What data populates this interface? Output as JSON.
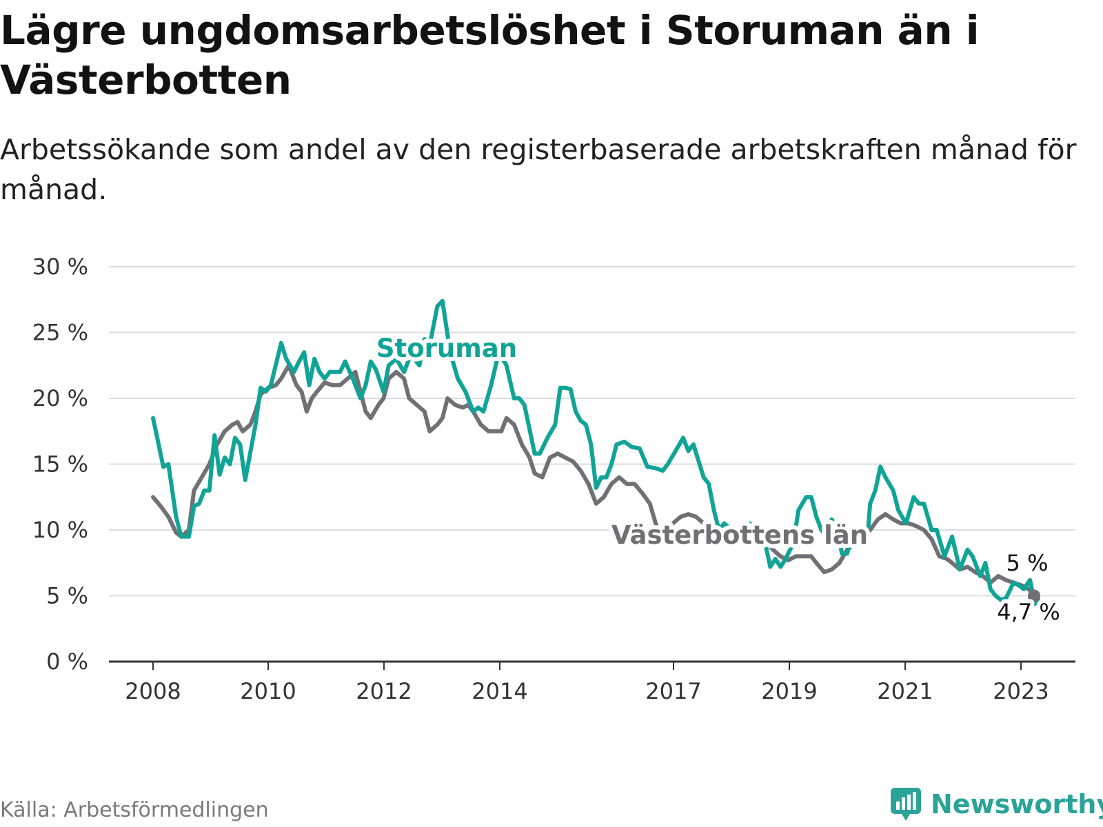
{
  "title": "Lägre ungdomsarbetslöshet i Storuman än i Västerbotten",
  "subtitle": "Arbetssökande som andel av den registerbaserade arbetskraften månad för månad.",
  "source": "Källa: Arbetsförmedlingen",
  "brand": {
    "name": "Newsworthy",
    "icon": "newsworthy-logo-icon"
  },
  "colors": {
    "storuman": "#10a497",
    "vasterbotten": "#707075",
    "grid": "#dcdcdc",
    "axis": "#333333"
  },
  "chart_data": {
    "type": "line",
    "xlim": [
      2008,
      2024.5
    ],
    "ylim": [
      0,
      30
    ],
    "y_ticks": [
      0,
      5,
      10,
      15,
      20,
      25,
      30
    ],
    "y_tick_labels": [
      "0 %",
      "5 %",
      "10 %",
      "15 %",
      "20 %",
      "25 %",
      "30 %"
    ],
    "x_ticks": [
      2008,
      2010,
      2012,
      2014,
      2017,
      2019,
      2021,
      2023
    ],
    "x_tick_labels": [
      "2008",
      "2010",
      "2012",
      "2014",
      "2017",
      "2019",
      "2021",
      "2023"
    ],
    "grid": true,
    "legend": "inline labels",
    "series": [
      {
        "name": "Storuman",
        "end_label": "4,7 %",
        "points": [
          [
            2008.0,
            18.5
          ],
          [
            2008.2,
            14.8
          ],
          [
            2008.3,
            15.0
          ],
          [
            2008.45,
            11.0
          ],
          [
            2008.55,
            9.5
          ],
          [
            2008.7,
            9.5
          ],
          [
            2008.8,
            11.8
          ],
          [
            2008.9,
            12.0
          ],
          [
            2009.0,
            13.0
          ],
          [
            2009.1,
            13.0
          ],
          [
            2009.2,
            17.2
          ],
          [
            2009.3,
            14.2
          ],
          [
            2009.4,
            15.5
          ],
          [
            2009.5,
            15.0
          ],
          [
            2009.6,
            17.0
          ],
          [
            2009.7,
            16.5
          ],
          [
            2009.8,
            13.8
          ],
          [
            2010.0,
            18.0
          ],
          [
            2010.1,
            20.8
          ],
          [
            2010.2,
            20.5
          ],
          [
            2010.3,
            21.0
          ],
          [
            2010.5,
            24.2
          ],
          [
            2010.6,
            23.0
          ],
          [
            2010.75,
            22.0
          ],
          [
            2010.85,
            22.8
          ],
          [
            2010.95,
            23.5
          ],
          [
            2011.05,
            21.0
          ],
          [
            2011.15,
            23.0
          ],
          [
            2011.25,
            22.0
          ],
          [
            2011.35,
            21.5
          ],
          [
            2011.45,
            22.0
          ],
          [
            2011.55,
            22.0
          ],
          [
            2011.65,
            22.0
          ],
          [
            2011.75,
            22.8
          ],
          [
            2011.9,
            21.5
          ],
          [
            2012.05,
            20.0
          ],
          [
            2012.15,
            21.0
          ],
          [
            2012.25,
            22.8
          ],
          [
            2012.35,
            22.2
          ],
          [
            2012.5,
            20.5
          ],
          [
            2012.6,
            22.5
          ],
          [
            2012.75,
            23.0
          ],
          [
            2012.9,
            22.0
          ],
          [
            2013.0,
            23.0
          ],
          [
            2013.1,
            23.0
          ],
          [
            2013.2,
            22.5
          ],
          [
            2013.3,
            24.5
          ],
          [
            2013.4,
            24.0
          ],
          [
            2013.55,
            27.0
          ],
          [
            2013.65,
            27.4
          ],
          [
            2013.8,
            23.5
          ],
          [
            2013.95,
            21.5
          ],
          [
            2014.1,
            20.5
          ],
          [
            2014.25,
            19.0
          ],
          [
            2014.35,
            19.3
          ],
          [
            2014.45,
            19.0
          ],
          [
            2014.6,
            21.0
          ],
          [
            2014.75,
            23.5
          ],
          [
            2014.9,
            22.5
          ],
          [
            2015.05,
            20.0
          ],
          [
            2015.15,
            20.0
          ],
          [
            2015.25,
            19.5
          ],
          [
            2015.45,
            15.8
          ],
          [
            2015.55,
            15.8
          ],
          [
            2015.7,
            17.0
          ],
          [
            2015.85,
            18.0
          ],
          [
            2015.95,
            20.8
          ],
          [
            2016.05,
            20.8
          ],
          [
            2016.15,
            20.7
          ],
          [
            2016.25,
            19.0
          ],
          [
            2016.35,
            18.3
          ],
          [
            2016.45,
            18.0
          ],
          [
            2016.55,
            16.5
          ],
          [
            2016.65,
            13.2
          ],
          [
            2016.75,
            14.0
          ],
          [
            2016.85,
            14.0
          ],
          [
            2016.95,
            15.0
          ],
          [
            2017.05,
            16.5
          ],
          [
            2017.2,
            16.7
          ],
          [
            2017.35,
            16.3
          ],
          [
            2017.5,
            16.2
          ],
          [
            2017.65,
            14.8
          ],
          [
            2017.8,
            14.7
          ],
          [
            2017.95,
            14.5
          ],
          [
            2018.05,
            15.0
          ],
          [
            2018.2,
            16.0
          ],
          [
            2018.35,
            17.0
          ],
          [
            2018.45,
            16.0
          ],
          [
            2018.55,
            16.5
          ],
          [
            2018.75,
            14.0
          ],
          [
            2018.85,
            13.5
          ],
          [
            2018.95,
            11.5
          ],
          [
            2019.05,
            10.0
          ],
          [
            2019.15,
            10.5
          ],
          [
            2019.3,
            10.0
          ],
          [
            2019.45,
            10.0
          ],
          [
            2019.55,
            9.5
          ],
          [
            2019.65,
            10.5
          ],
          [
            2019.75,
            10.0
          ],
          [
            2019.85,
            9.0
          ],
          [
            2019.95,
            9.0
          ],
          [
            2020.05,
            7.2
          ],
          [
            2020.15,
            7.8
          ],
          [
            2020.25,
            7.2
          ],
          [
            2020.35,
            7.8
          ],
          [
            2020.5,
            9.0
          ],
          [
            2020.6,
            11.5
          ],
          [
            2020.75,
            12.5
          ],
          [
            2020.85,
            12.5
          ],
          [
            2020.95,
            11.0
          ],
          [
            2021.05,
            10.0
          ],
          [
            2021.15,
            9.5
          ],
          [
            2021.25,
            10.8
          ],
          [
            2021.35,
            10.0
          ],
          [
            2021.45,
            8.2
          ],
          [
            2021.55,
            8.2
          ],
          [
            2021.65,
            9.5
          ],
          [
            2021.75,
            9.5
          ],
          [
            2021.85,
            10.0
          ],
          [
            2021.95,
            9.5
          ],
          [
            2022.0,
            12.0
          ],
          [
            2022.1,
            13.0
          ],
          [
            2022.2,
            14.8
          ],
          [
            2022.3,
            14.0
          ],
          [
            2022.45,
            13.0
          ],
          [
            2022.55,
            11.5
          ],
          [
            2022.7,
            10.5
          ],
          [
            2022.85,
            12.5
          ],
          [
            2022.95,
            12.0
          ],
          [
            2023.05,
            12.0
          ],
          [
            2023.2,
            10.0
          ],
          [
            2023.3,
            10.0
          ],
          [
            2023.45,
            8.0
          ],
          [
            2023.6,
            9.5
          ],
          [
            2023.75,
            7.0
          ],
          [
            2023.9,
            8.5
          ],
          [
            2024.0,
            8.0
          ],
          [
            2024.15,
            6.5
          ],
          [
            2024.25,
            7.5
          ],
          [
            2024.35,
            5.5
          ],
          [
            2024.45,
            5.0
          ],
          [
            2024.55,
            4.7
          ],
          [
            2024.65,
            4.8
          ],
          [
            2024.8,
            6.0
          ],
          [
            2024.9,
            5.8
          ],
          [
            2025.0,
            5.5
          ],
          [
            2025.05,
            5.8
          ],
          [
            2025.12,
            6.2
          ],
          [
            2025.2,
            4.7
          ]
        ]
      },
      {
        "name": "Västerbottens län",
        "end_label": "5 %",
        "points": [
          [
            2008.0,
            12.5
          ],
          [
            2008.15,
            11.8
          ],
          [
            2008.3,
            11.0
          ],
          [
            2008.45,
            9.8
          ],
          [
            2008.55,
            9.5
          ],
          [
            2008.7,
            10.0
          ],
          [
            2008.8,
            13.0
          ],
          [
            2008.95,
            14.0
          ],
          [
            2009.1,
            15.0
          ],
          [
            2009.25,
            16.5
          ],
          [
            2009.4,
            17.5
          ],
          [
            2009.55,
            18.0
          ],
          [
            2009.65,
            18.2
          ],
          [
            2009.75,
            17.5
          ],
          [
            2009.9,
            18.0
          ],
          [
            2010.0,
            19.0
          ],
          [
            2010.1,
            20.3
          ],
          [
            2010.25,
            20.8
          ],
          [
            2010.4,
            21.0
          ],
          [
            2010.5,
            21.5
          ],
          [
            2010.65,
            22.5
          ],
          [
            2010.8,
            21.0
          ],
          [
            2010.9,
            20.5
          ],
          [
            2011.0,
            19.0
          ],
          [
            2011.1,
            20.0
          ],
          [
            2011.2,
            20.5
          ],
          [
            2011.35,
            21.2
          ],
          [
            2011.5,
            21.0
          ],
          [
            2011.65,
            21.0
          ],
          [
            2011.8,
            21.5
          ],
          [
            2011.95,
            22.0
          ],
          [
            2012.05,
            20.5
          ],
          [
            2012.15,
            19.0
          ],
          [
            2012.25,
            18.5
          ],
          [
            2012.4,
            19.5
          ],
          [
            2012.5,
            20.0
          ],
          [
            2012.6,
            21.5
          ],
          [
            2012.75,
            22.0
          ],
          [
            2012.9,
            21.5
          ],
          [
            2013.0,
            20.0
          ],
          [
            2013.15,
            19.5
          ],
          [
            2013.3,
            19.0
          ],
          [
            2013.4,
            17.5
          ],
          [
            2013.55,
            18.0
          ],
          [
            2013.65,
            18.5
          ],
          [
            2013.75,
            20.0
          ],
          [
            2013.9,
            19.5
          ],
          [
            2014.05,
            19.3
          ],
          [
            2014.15,
            19.5
          ],
          [
            2014.25,
            19.0
          ],
          [
            2014.4,
            18.0
          ],
          [
            2014.55,
            17.5
          ],
          [
            2014.65,
            17.5
          ],
          [
            2014.8,
            17.5
          ],
          [
            2014.9,
            18.5
          ],
          [
            2015.05,
            18.0
          ],
          [
            2015.2,
            16.5
          ],
          [
            2015.35,
            15.5
          ],
          [
            2015.45,
            14.3
          ],
          [
            2015.6,
            14.0
          ],
          [
            2015.75,
            15.5
          ],
          [
            2015.9,
            15.8
          ],
          [
            2016.05,
            15.5
          ],
          [
            2016.2,
            15.2
          ],
          [
            2016.35,
            14.5
          ],
          [
            2016.5,
            13.5
          ],
          [
            2016.65,
            12.0
          ],
          [
            2016.8,
            12.5
          ],
          [
            2016.95,
            13.5
          ],
          [
            2017.1,
            14.0
          ],
          [
            2017.25,
            13.5
          ],
          [
            2017.4,
            13.5
          ],
          [
            2017.55,
            12.8
          ],
          [
            2017.7,
            12.0
          ],
          [
            2017.85,
            10.0
          ],
          [
            2018.0,
            10.0
          ],
          [
            2018.15,
            10.5
          ],
          [
            2018.3,
            11.0
          ],
          [
            2018.45,
            11.2
          ],
          [
            2018.6,
            11.0
          ],
          [
            2018.75,
            10.5
          ],
          [
            2018.9,
            10.0
          ],
          [
            2019.0,
            9.8
          ],
          [
            2019.15,
            9.5
          ],
          [
            2019.3,
            9.5
          ],
          [
            2019.5,
            9.0
          ],
          [
            2019.65,
            9.5
          ],
          [
            2019.8,
            9.5
          ],
          [
            2019.95,
            9.2
          ],
          [
            2020.1,
            8.5
          ],
          [
            2020.25,
            8.0
          ],
          [
            2020.4,
            7.7
          ],
          [
            2020.55,
            8.0
          ],
          [
            2020.7,
            8.0
          ],
          [
            2020.85,
            8.0
          ],
          [
            2020.95,
            7.5
          ],
          [
            2021.1,
            6.8
          ],
          [
            2021.25,
            7.0
          ],
          [
            2021.4,
            7.5
          ],
          [
            2021.55,
            8.5
          ],
          [
            2021.7,
            9.0
          ],
          [
            2021.85,
            9.5
          ],
          [
            2022.0,
            10.0
          ],
          [
            2022.15,
            10.8
          ],
          [
            2022.3,
            11.2
          ],
          [
            2022.45,
            10.8
          ],
          [
            2022.6,
            10.5
          ],
          [
            2022.75,
            10.5
          ],
          [
            2022.9,
            10.3
          ],
          [
            2023.05,
            10.0
          ],
          [
            2023.2,
            9.3
          ],
          [
            2023.35,
            8.0
          ],
          [
            2023.5,
            7.8
          ],
          [
            2023.6,
            7.5
          ],
          [
            2023.75,
            7.0
          ],
          [
            2023.9,
            7.2
          ],
          [
            2024.05,
            6.8
          ],
          [
            2024.2,
            6.5
          ],
          [
            2024.35,
            6.0
          ],
          [
            2024.5,
            6.5
          ],
          [
            2024.65,
            6.2
          ],
          [
            2024.8,
            6.0
          ],
          [
            2024.95,
            5.8
          ],
          [
            2025.1,
            5.5
          ],
          [
            2025.2,
            5.0
          ]
        ]
      }
    ]
  }
}
